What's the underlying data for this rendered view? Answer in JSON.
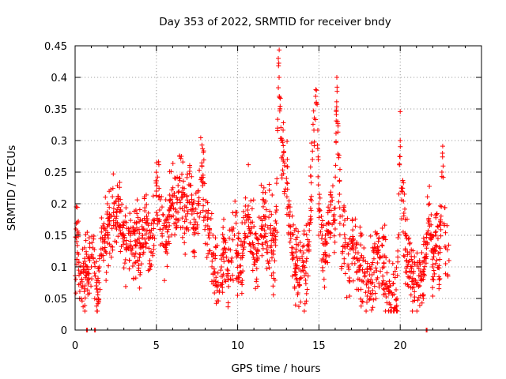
{
  "chart_data": {
    "type": "scatter",
    "title": "Day 353 of 2022, SRMTID for receiver bndy",
    "xlabel": "GPS time / hours",
    "ylabel": "SRMTID / TECUs",
    "xlim": [
      0,
      25
    ],
    "ylim": [
      0,
      0.45
    ],
    "grid": true,
    "marker": "+",
    "color": "#ff0000",
    "x_ticks": [
      0,
      5,
      10,
      15,
      20
    ],
    "x_tick_labels": [
      "0",
      "5",
      "10",
      "15",
      "20"
    ],
    "y_ticks": [
      0,
      0.05,
      0.1,
      0.15,
      0.2,
      0.25,
      0.3,
      0.35,
      0.4,
      0.45
    ],
    "y_tick_labels": [
      "0",
      "0.05",
      "0.1",
      "0.15",
      "0.2",
      "0.25",
      "0.3",
      "0.35",
      "0.4",
      "0.45"
    ],
    "series": [
      {
        "name": "SRMTID",
        "x_range": [
          0,
          23.0
        ],
        "description_points": [
          [
            0.05,
            0.16
          ],
          [
            0.1,
            0.14
          ],
          [
            0.15,
            0.17
          ],
          [
            0.2,
            0.12
          ],
          [
            0.3,
            0.09
          ],
          [
            0.4,
            0.08
          ],
          [
            0.5,
            0.1
          ],
          [
            0.6,
            0.07
          ],
          [
            0.7,
            0.12
          ],
          [
            0.8,
            0.09
          ],
          [
            0.9,
            0.11
          ],
          [
            1.0,
            0.1
          ],
          [
            1.1,
            0.13
          ],
          [
            1.2,
            0.09
          ],
          [
            1.3,
            0.07
          ],
          [
            1.4,
            0.06
          ],
          [
            1.5,
            0.1
          ],
          [
            1.6,
            0.12
          ],
          [
            1.8,
            0.14
          ],
          [
            2.0,
            0.15
          ],
          [
            2.2,
            0.18
          ],
          [
            2.4,
            0.2
          ],
          [
            2.6,
            0.17
          ],
          [
            2.8,
            0.19
          ],
          [
            3.0,
            0.14
          ],
          [
            3.2,
            0.13
          ],
          [
            3.4,
            0.15
          ],
          [
            3.6,
            0.12
          ],
          [
            3.8,
            0.14
          ],
          [
            4.0,
            0.13
          ],
          [
            4.2,
            0.16
          ],
          [
            4.4,
            0.18
          ],
          [
            4.6,
            0.11
          ],
          [
            4.8,
            0.15
          ],
          [
            5.0,
            0.22
          ],
          [
            5.2,
            0.19
          ],
          [
            5.4,
            0.16
          ],
          [
            5.6,
            0.14
          ],
          [
            5.8,
            0.18
          ],
          [
            6.0,
            0.2
          ],
          [
            6.2,
            0.17
          ],
          [
            6.4,
            0.24
          ],
          [
            6.6,
            0.21
          ],
          [
            6.8,
            0.18
          ],
          [
            7.0,
            0.23
          ],
          [
            7.2,
            0.19
          ],
          [
            7.4,
            0.16
          ],
          [
            7.6,
            0.2
          ],
          [
            7.8,
            0.26
          ],
          [
            8.0,
            0.18
          ],
          [
            8.2,
            0.15
          ],
          [
            8.4,
            0.12
          ],
          [
            8.6,
            0.09
          ],
          [
            8.8,
            0.07
          ],
          [
            9.0,
            0.1
          ],
          [
            9.2,
            0.13
          ],
          [
            9.4,
            0.08
          ],
          [
            9.6,
            0.11
          ],
          [
            9.8,
            0.15
          ],
          [
            10.0,
            0.12
          ],
          [
            10.2,
            0.09
          ],
          [
            10.4,
            0.14
          ],
          [
            10.6,
            0.19
          ],
          [
            10.8,
            0.17
          ],
          [
            11.0,
            0.13
          ],
          [
            11.2,
            0.11
          ],
          [
            11.4,
            0.15
          ],
          [
            11.6,
            0.18
          ],
          [
            11.8,
            0.14
          ],
          [
            12.0,
            0.16
          ],
          [
            12.2,
            0.12
          ],
          [
            12.4,
            0.19
          ],
          [
            12.5,
            0.43
          ],
          [
            12.55,
            0.4
          ],
          [
            12.6,
            0.35
          ],
          [
            12.7,
            0.3
          ],
          [
            12.8,
            0.27
          ],
          [
            13.0,
            0.24
          ],
          [
            13.2,
            0.18
          ],
          [
            13.4,
            0.13
          ],
          [
            13.6,
            0.1
          ],
          [
            13.8,
            0.08
          ],
          [
            14.0,
            0.11
          ],
          [
            14.2,
            0.09
          ],
          [
            14.4,
            0.14
          ],
          [
            14.6,
            0.27
          ],
          [
            14.8,
            0.37
          ],
          [
            15.0,
            0.2
          ],
          [
            15.2,
            0.15
          ],
          [
            15.4,
            0.12
          ],
          [
            15.6,
            0.17
          ],
          [
            15.8,
            0.21
          ],
          [
            16.0,
            0.16
          ],
          [
            16.1,
            0.4
          ],
          [
            16.15,
            0.33
          ],
          [
            16.3,
            0.18
          ],
          [
            16.6,
            0.13
          ],
          [
            16.8,
            0.1
          ],
          [
            17.0,
            0.14
          ],
          [
            17.4,
            0.11
          ],
          [
            17.8,
            0.09
          ],
          [
            18.2,
            0.08
          ],
          [
            18.6,
            0.12
          ],
          [
            19.0,
            0.1
          ],
          [
            19.4,
            0.07
          ],
          [
            19.8,
            0.05
          ],
          [
            20.0,
            0.3
          ],
          [
            20.1,
            0.22
          ],
          [
            20.4,
            0.11
          ],
          [
            20.8,
            0.09
          ],
          [
            21.2,
            0.07
          ],
          [
            21.6,
            0.12
          ],
          [
            21.8,
            0.2
          ],
          [
            22.0,
            0.1
          ],
          [
            22.2,
            0.15
          ],
          [
            22.4,
            0.08
          ],
          [
            22.6,
            0.28
          ],
          [
            22.8,
            0.13
          ],
          [
            23.0,
            0.11
          ]
        ],
        "zero_points_x": [
          0.7,
          1.2,
          21.6
        ]
      }
    ]
  }
}
